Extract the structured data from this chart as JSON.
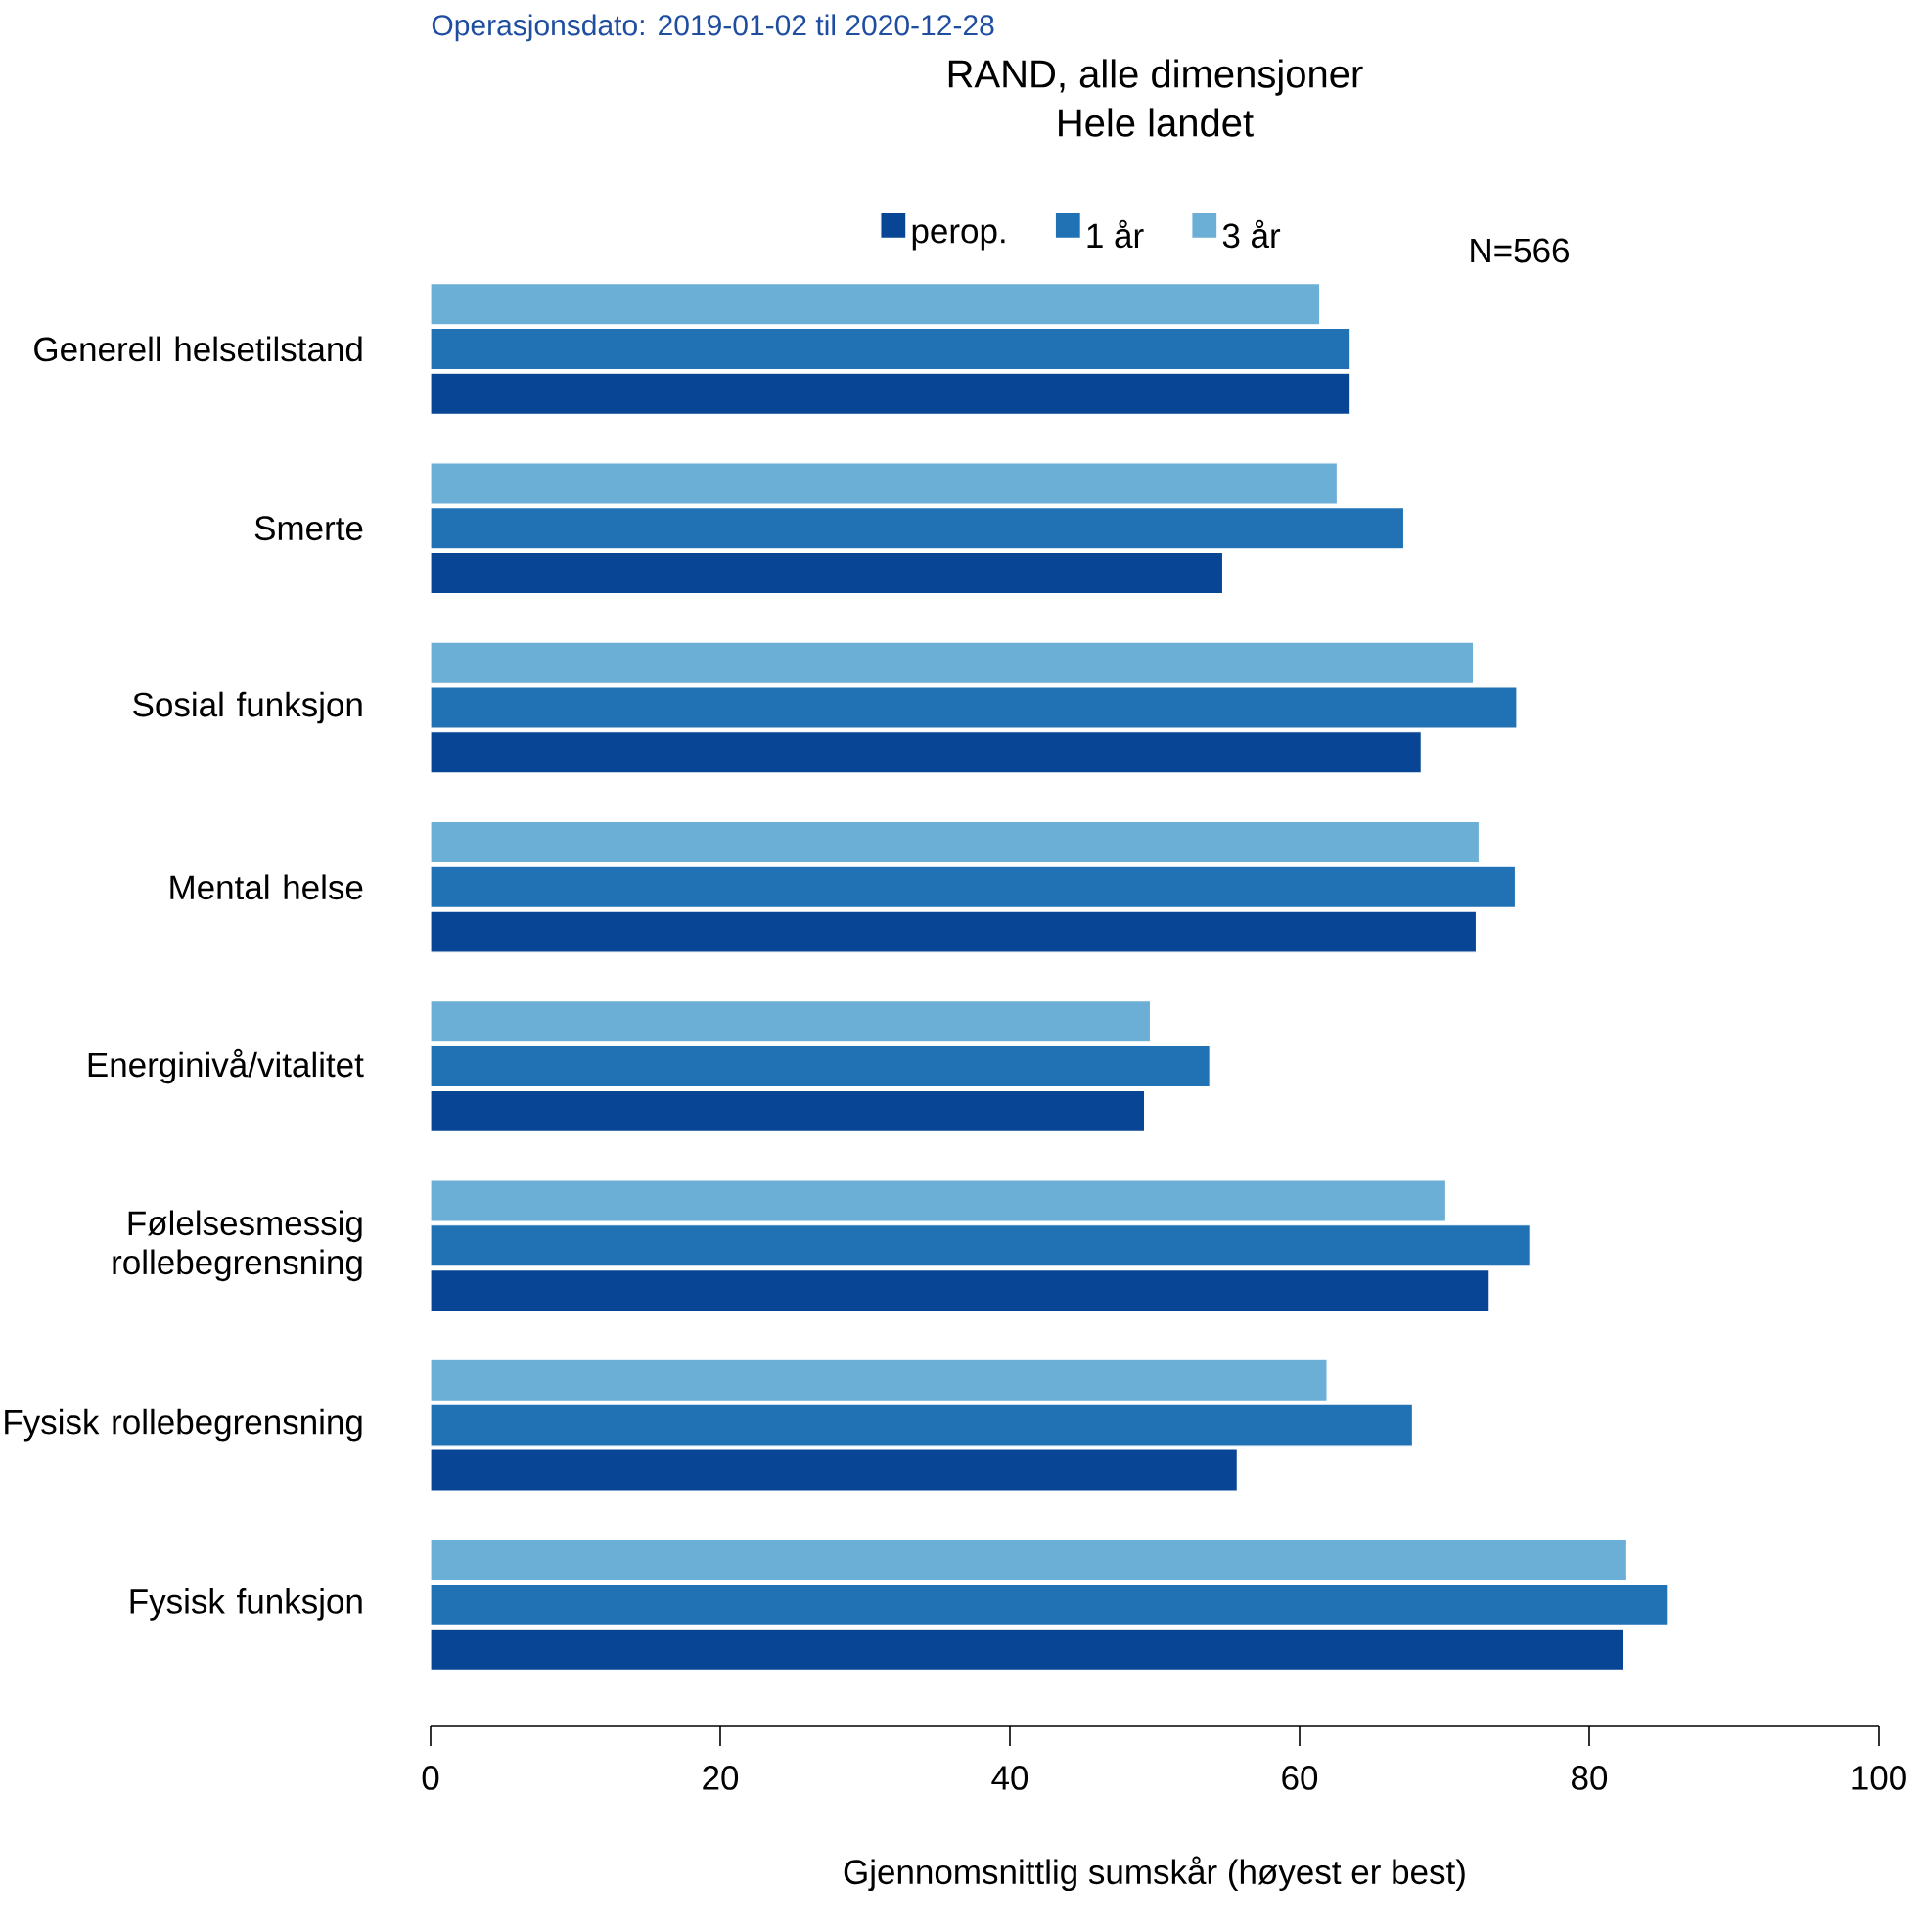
{
  "chart_data": {
    "type": "bar",
    "orientation": "horizontal",
    "title": "RAND, alle dimensjoner",
    "subtitle": "Hele landet",
    "xlabel": "Gjennomsnittlig sumskår (høyest er best)",
    "annotations": [
      "Operasjonsdato: 2019-01-02 til 2020-12-28",
      "N=566"
    ],
    "categories": [
      "Generell helsetilstand",
      "Smerte",
      "Sosial funksjon",
      "Mental helse",
      "Energinivå/vitalitet",
      "Følelsesmessig rollebegrensning",
      "Fysisk rollebegrensning",
      "Fysisk funksjon"
    ],
    "series": [
      {
        "name": "perop.",
        "color": "#084594",
        "values": [
          63.5,
          54.7,
          68.4,
          72.2,
          49.3,
          73.1,
          55.7,
          82.4
        ]
      },
      {
        "name": "1 år",
        "color": "#2171b5",
        "values": [
          63.5,
          67.2,
          75.0,
          74.9,
          53.8,
          75.9,
          67.8,
          85.4
        ]
      },
      {
        "name": "3 år",
        "color": "#6baed6",
        "values": [
          61.4,
          62.6,
          72.0,
          72.4,
          49.7,
          70.1,
          61.9,
          82.6
        ]
      }
    ],
    "xlim": [
      0,
      100
    ],
    "xticks": [
      0,
      20,
      40,
      60,
      80,
      100
    ],
    "legend": "top"
  }
}
